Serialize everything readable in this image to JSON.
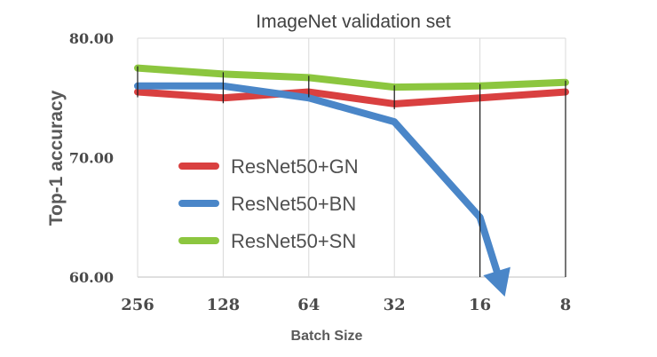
{
  "chart_data": {
    "type": "line",
    "title": "ImageNet validation set",
    "xlabel": "Batch Size",
    "ylabel": "Top-1 accuracy",
    "categories": [
      "256",
      "128",
      "64",
      "32",
      "16",
      "8"
    ],
    "yticks": [
      "80.00",
      "70.00",
      "60.00"
    ],
    "ylim": [
      60,
      80
    ],
    "grid": "vertical",
    "legend_position": "left-center",
    "series": [
      {
        "name": "ResNet50+GN",
        "values": [
          75.5,
          75.0,
          75.5,
          74.5,
          75.0,
          75.5
        ],
        "color": "#d94040"
      },
      {
        "name": "ResNet50+BN",
        "values": [
          76.0,
          76.0,
          75.0,
          73.0,
          65.0,
          null
        ],
        "color": "#4a86c8",
        "trend": "continues below axis minimum after batch size 16 (arrow)"
      },
      {
        "name": "ResNet50+SN",
        "values": [
          77.5,
          77.0,
          76.7,
          75.9,
          76.0,
          76.3
        ],
        "color": "#8cc63f"
      }
    ]
  }
}
